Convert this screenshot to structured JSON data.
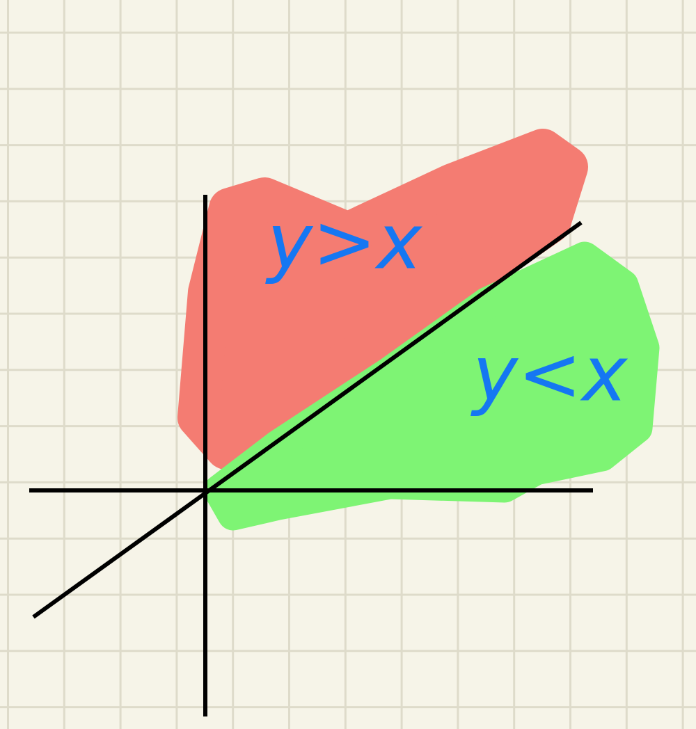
{
  "labels": {
    "upper": "y>x",
    "lower": "y<x"
  }
}
